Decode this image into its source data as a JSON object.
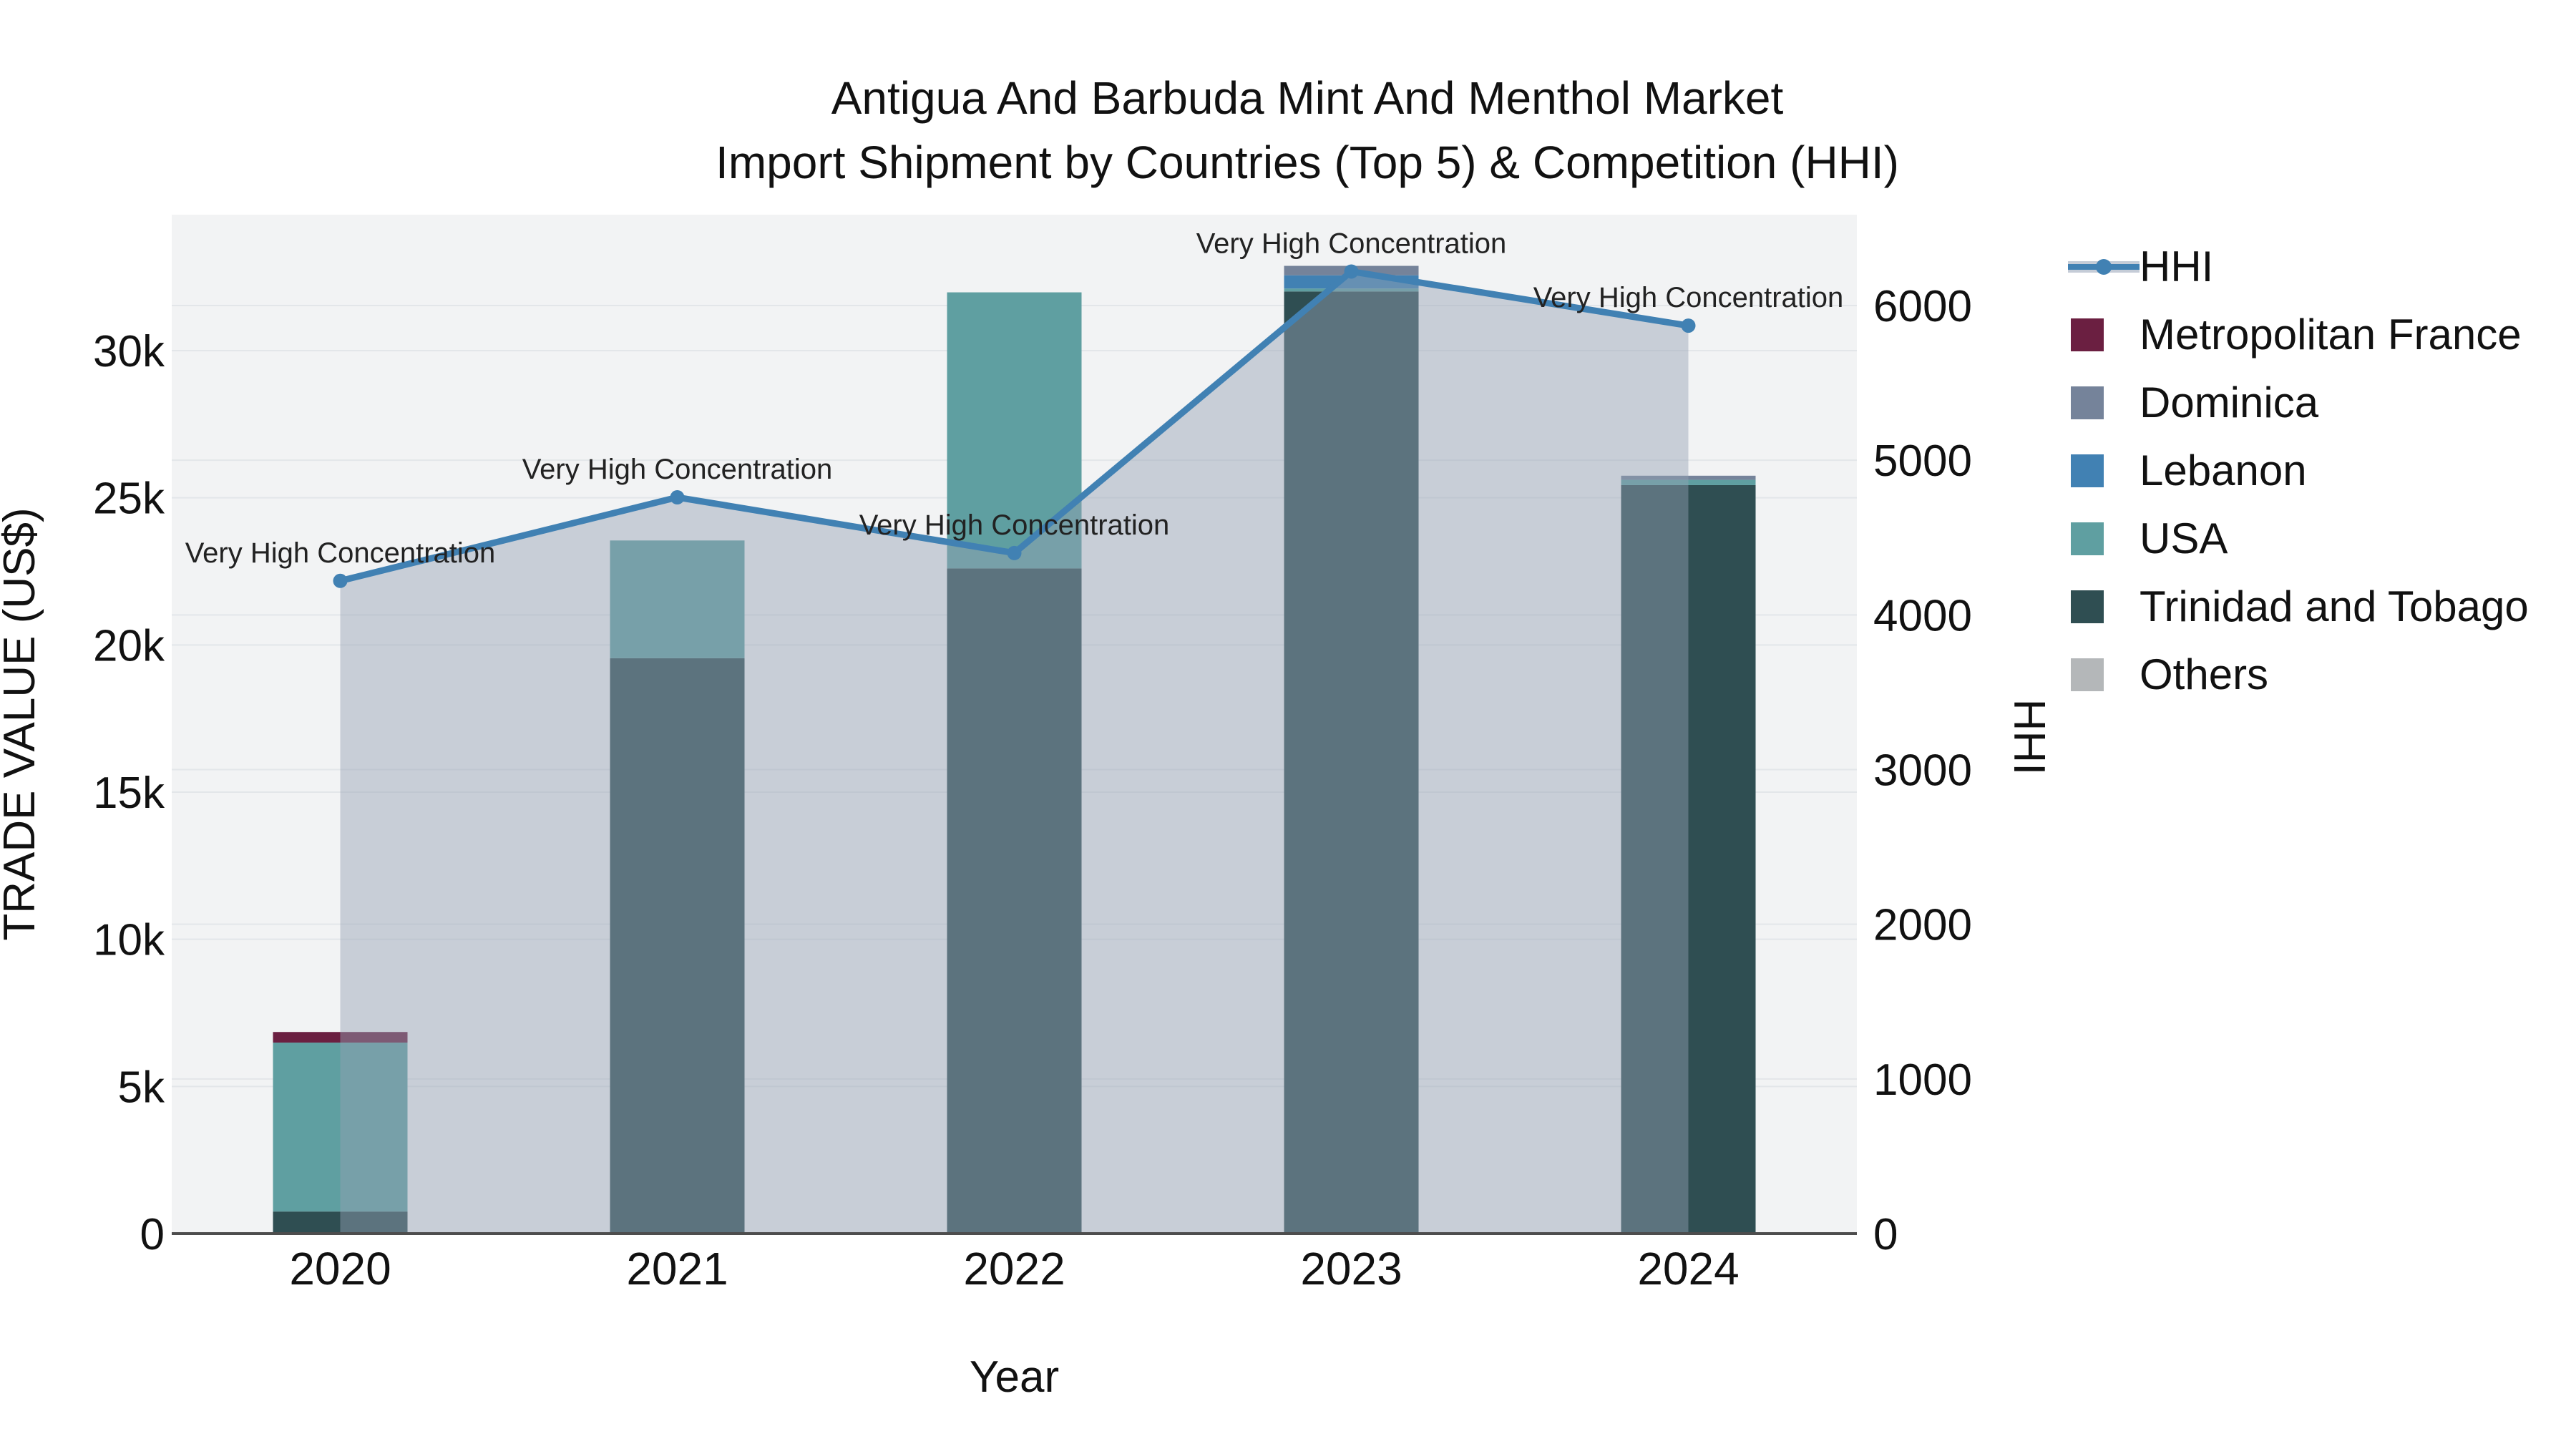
{
  "title": {
    "line1": "Antigua And Barbuda Mint And Menthol Market",
    "line2": "Import Shipment by Countries (Top 5) & Competition (HHI)"
  },
  "axes": {
    "x": {
      "label": "Year",
      "ticks": [
        "2020",
        "2021",
        "2022",
        "2023",
        "2024"
      ]
    },
    "y_left": {
      "label": "TRADE VALUE (US$)",
      "ticks": [
        "0",
        "5k",
        "10k",
        "15k",
        "20k",
        "25k",
        "30k"
      ],
      "tick_values": [
        0,
        5000,
        10000,
        15000,
        20000,
        25000,
        30000
      ]
    },
    "y_right": {
      "label": "HHI",
      "ticks": [
        "0",
        "1000",
        "2000",
        "3000",
        "4000",
        "5000",
        "6000"
      ],
      "tick_values": [
        0,
        1000,
        2000,
        3000,
        4000,
        5000,
        6000
      ]
    }
  },
  "legend": {
    "items": [
      {
        "label": "HHI",
        "type": "line",
        "color": "#4181b3",
        "band": "#c5ccd7"
      },
      {
        "label": "Metropolitan France",
        "type": "swatch",
        "color": "#6b1f41"
      },
      {
        "label": "Dominica",
        "type": "swatch",
        "color": "#75839a"
      },
      {
        "label": "Lebanon",
        "type": "swatch",
        "color": "#4181b3"
      },
      {
        "label": "USA",
        "type": "swatch",
        "color": "#5f9fa1"
      },
      {
        "label": "Trinidad and Tobago",
        "type": "swatch",
        "color": "#2f4e52"
      },
      {
        "label": "Others",
        "type": "swatch",
        "color": "#b4b7b9"
      }
    ]
  },
  "chart_data": {
    "type": "bar",
    "subtype": "stacked bars with overlaid line (secondary axis)",
    "categories": [
      "2020",
      "2021",
      "2022",
      "2023",
      "2024"
    ],
    "series": [
      {
        "name": "Metropolitan France",
        "axis": "left",
        "color": "#6b1f41",
        "values": [
          360,
          0,
          0,
          0,
          0
        ]
      },
      {
        "name": "Dominica",
        "axis": "left",
        "color": "#75839a",
        "values": [
          0,
          0,
          0,
          320,
          140
        ]
      },
      {
        "name": "Lebanon",
        "axis": "left",
        "color": "#4181b3",
        "values": [
          0,
          0,
          0,
          450,
          0
        ]
      },
      {
        "name": "USA",
        "axis": "left",
        "color": "#5f9fa1",
        "values": [
          5740,
          4000,
          9380,
          100,
          180
        ]
      },
      {
        "name": "Trinidad and Tobago",
        "axis": "left",
        "color": "#2f4e52",
        "values": [
          750,
          19550,
          22600,
          32010,
          25430
        ]
      },
      {
        "name": "Others",
        "axis": "left",
        "color": "#b4b7b9",
        "values": [
          0,
          0,
          0,
          0,
          0
        ]
      }
    ],
    "line_series": {
      "name": "HHI",
      "axis": "right",
      "color": "#4181b3",
      "area_fill": "rgba(149,161,180,0.45)",
      "values": [
        4220,
        4760,
        4400,
        6220,
        5870
      ],
      "annotations": [
        "Very High Concentration",
        "Very High Concentration",
        "Very High Concentration",
        "Very High Concentration",
        "Very High Concentration"
      ]
    },
    "title": "Antigua And Barbuda Mint And Menthol Market Import Shipment by Countries (Top 5) & Competition (HHI)",
    "xlabel": "Year",
    "ylabel_left": "TRADE VALUE (US$)",
    "ylabel_right": "HHI",
    "ylim_left": [
      0,
      34600
    ],
    "ylim_right": [
      0,
      6590
    ],
    "grid": true,
    "legend_position": "right",
    "plot_bg": "#f2f3f4",
    "grid_color": "#e3e6e9"
  }
}
